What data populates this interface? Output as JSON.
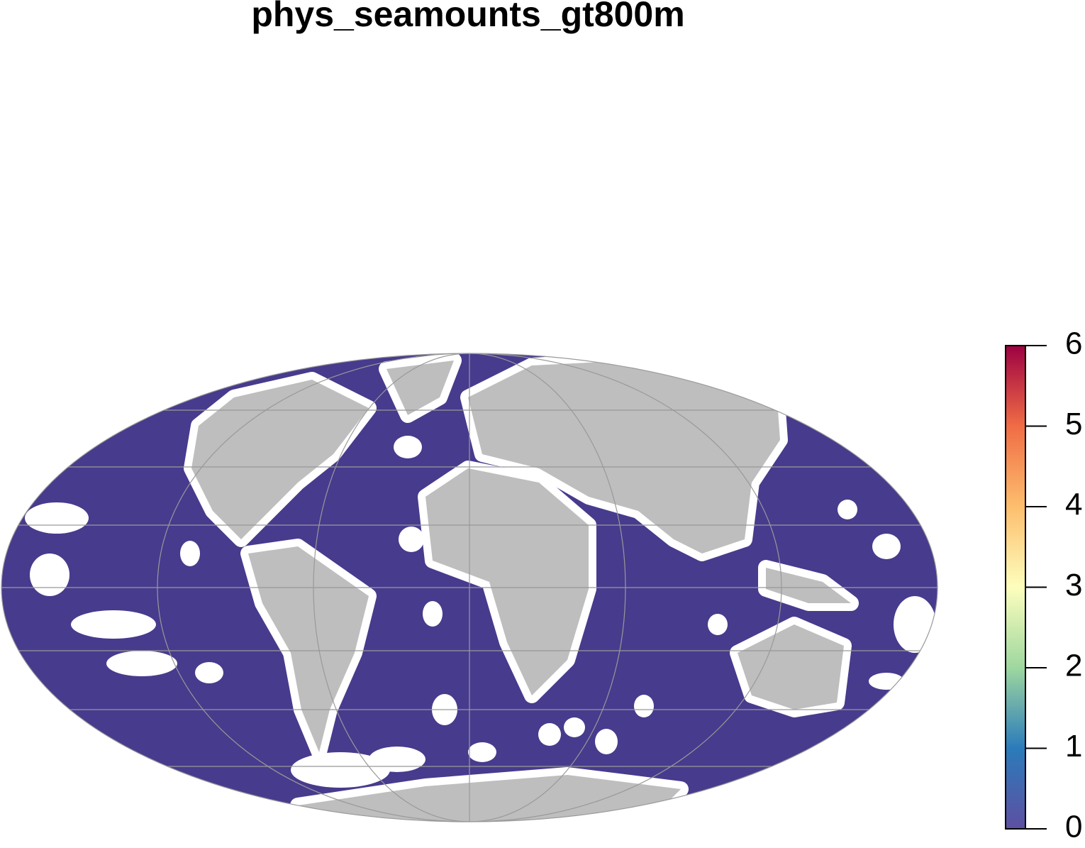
{
  "title": "phys_seamounts_gt800m",
  "colorbar": {
    "lim": [
      0,
      6
    ],
    "ticks": [
      0,
      1,
      2,
      3,
      4,
      5,
      6
    ],
    "colors": [
      "#5e4fa2",
      "#2b7bba",
      "#9ed79f",
      "#fdfebd",
      "#fdbe6e",
      "#f06c45",
      "#9e0142"
    ]
  }
}
